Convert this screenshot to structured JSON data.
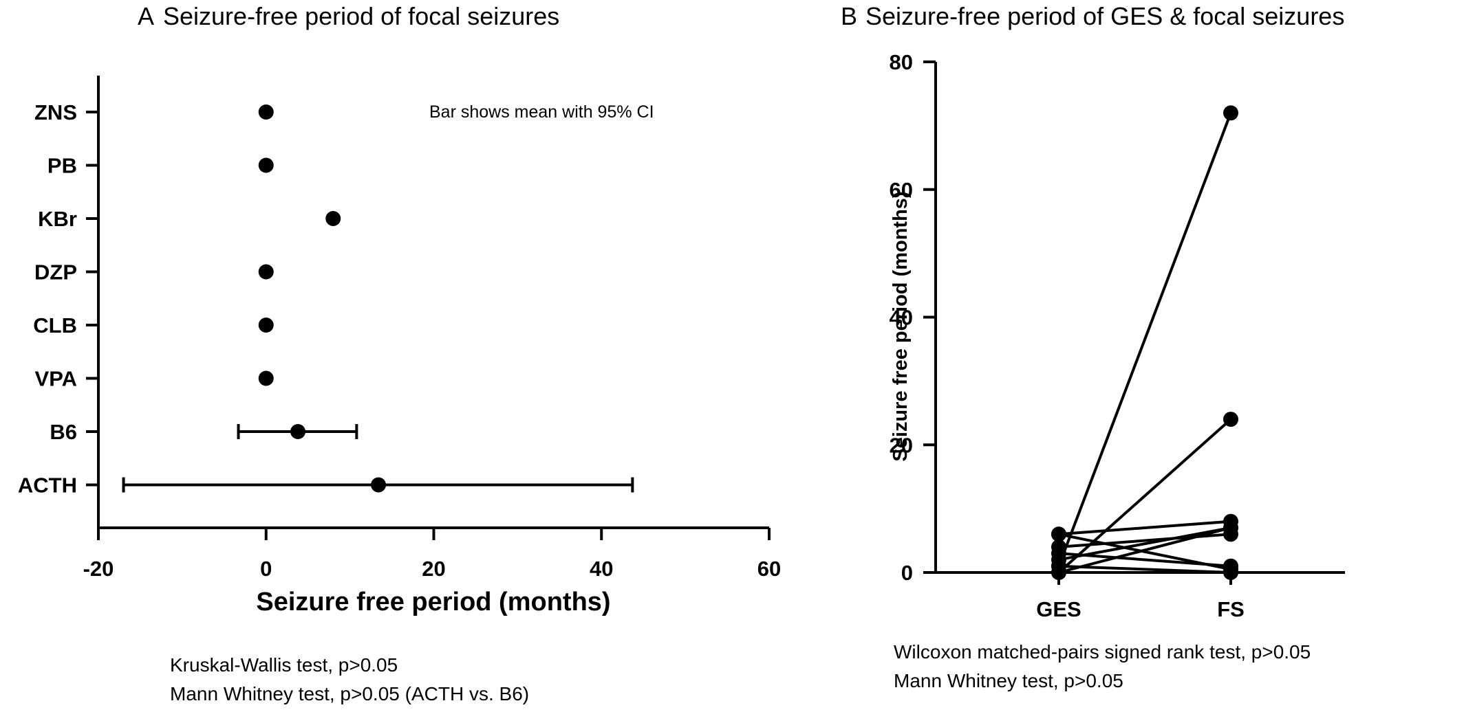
{
  "chart_data": [
    {
      "panel": "A",
      "type": "scatter",
      "title": "Seizure-free period of focal seizures",
      "xlabel": "Seizure free period (months)",
      "ylabel": "",
      "xlim": [
        -20,
        60
      ],
      "xticks": [
        -20,
        0,
        20,
        40,
        60
      ],
      "categories": [
        "ZNS",
        "PB",
        "KBr",
        "DZP",
        "CLB",
        "VPA",
        "B6",
        "ACTH"
      ],
      "means": [
        0,
        0,
        8,
        0,
        0,
        0,
        3.8,
        13.4
      ],
      "ci_low": [
        null,
        null,
        null,
        null,
        null,
        null,
        -3.3,
        -17
      ],
      "ci_high": [
        null,
        null,
        null,
        null,
        null,
        null,
        10.8,
        43.7
      ],
      "annotation": "Bar shows mean with 95% CI",
      "footnotes": [
        "Kruskal-Wallis test, p>0.05",
        "Mann Whitney test, p>0.05 (ACTH vs. B6)"
      ],
      "grid": false
    },
    {
      "panel": "B",
      "type": "line",
      "title": "Seizure-free period of GES & focal seizures",
      "xlabel": "",
      "ylabel": "Seizure free period (months)",
      "ylim": [
        0,
        80
      ],
      "yticks": [
        0,
        20,
        40,
        60,
        80
      ],
      "categories": [
        "GES",
        "FS"
      ],
      "pairs": [
        [
          1,
          72
        ],
        [
          0,
          24
        ],
        [
          6,
          8
        ],
        [
          2,
          7
        ],
        [
          4,
          6
        ],
        [
          0,
          7
        ],
        [
          3,
          1
        ],
        [
          6,
          0.5
        ],
        [
          1,
          0
        ]
      ],
      "footnotes": [
        "Wilcoxon matched-pairs signed rank test, p>0.05",
        "Mann Whitney test, p>0.05"
      ],
      "grid": false
    }
  ]
}
